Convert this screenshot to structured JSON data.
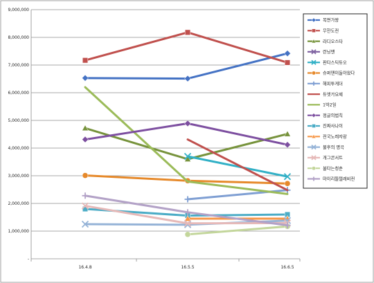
{
  "chart_data": {
    "type": "line",
    "categories": [
      "16.4.8",
      "16.5.5",
      "16.6.5"
    ],
    "ylim": [
      0,
      9000000
    ],
    "ytick_labels": [
      "-",
      "1,000,000",
      "2,000,000",
      "3,000,000",
      "4,000,000",
      "5,000,000",
      "6,000,000",
      "7,000,000",
      "8,000,000",
      "9,000,000"
    ],
    "grid": true,
    "legend_position": "right",
    "series": [
      {
        "name": "복면가왕",
        "color": "#4472c4",
        "marker": "diamond",
        "values": [
          6530000,
          6510000,
          7420000
        ]
      },
      {
        "name": "무한도전",
        "color": "#c0504d",
        "marker": "square",
        "values": [
          7170000,
          8180000,
          7090000
        ]
      },
      {
        "name": "라디오스타",
        "color": "#77933c",
        "marker": "triangle",
        "values": [
          4720000,
          3600000,
          4510000
        ]
      },
      {
        "name": "런닝맨",
        "color": "#8064a2",
        "marker": "x",
        "values": [
          null,
          null,
          null
        ]
      },
      {
        "name": "판타스틱듀오",
        "color": "#31b0c6",
        "marker": "x",
        "values": [
          null,
          3700000,
          2970000
        ]
      },
      {
        "name": "슈퍼맨이돌아왔다",
        "color": "#e6892a",
        "marker": "circle",
        "values": [
          3010000,
          2820000,
          2720000
        ]
      },
      {
        "name": "해피투게더",
        "color": "#7f9fd3",
        "marker": "plus",
        "values": [
          null,
          2150000,
          2480000
        ]
      },
      {
        "name": "듀엣가요제",
        "color": "#c0504d",
        "marker": "none",
        "values": [
          null,
          4310000,
          2480000
        ]
      },
      {
        "name": "1박2일",
        "color": "#9bbb59",
        "marker": "none",
        "values": [
          6200000,
          2790000,
          2340000
        ]
      },
      {
        "name": "정글의법칙",
        "color": "#7d4fa0",
        "marker": "diamond",
        "values": [
          4310000,
          4890000,
          4120000
        ]
      },
      {
        "name": "진짜사나이",
        "color": "#4bacc6",
        "marker": "square",
        "values": [
          1800000,
          1560000,
          1600000
        ]
      },
      {
        "name": "전국노래자랑",
        "color": "#f79646",
        "marker": "triangle",
        "values": [
          null,
          1450000,
          1450000
        ]
      },
      {
        "name": "불후의 명곡",
        "color": "#95b3d7",
        "marker": "x",
        "values": [
          1250000,
          1230000,
          1380000
        ]
      },
      {
        "name": "개그콘서트",
        "color": "#e6b9b8",
        "marker": "x",
        "values": [
          1910000,
          1280000,
          1290000
        ]
      },
      {
        "name": "불타는청춘",
        "color": "#c3d69b",
        "marker": "circle",
        "values": [
          null,
          880000,
          1170000
        ]
      },
      {
        "name": "마이리틀텔레비전",
        "color": "#b3a2c7",
        "marker": "plus",
        "values": [
          2280000,
          1680000,
          1210000
        ]
      }
    ]
  }
}
